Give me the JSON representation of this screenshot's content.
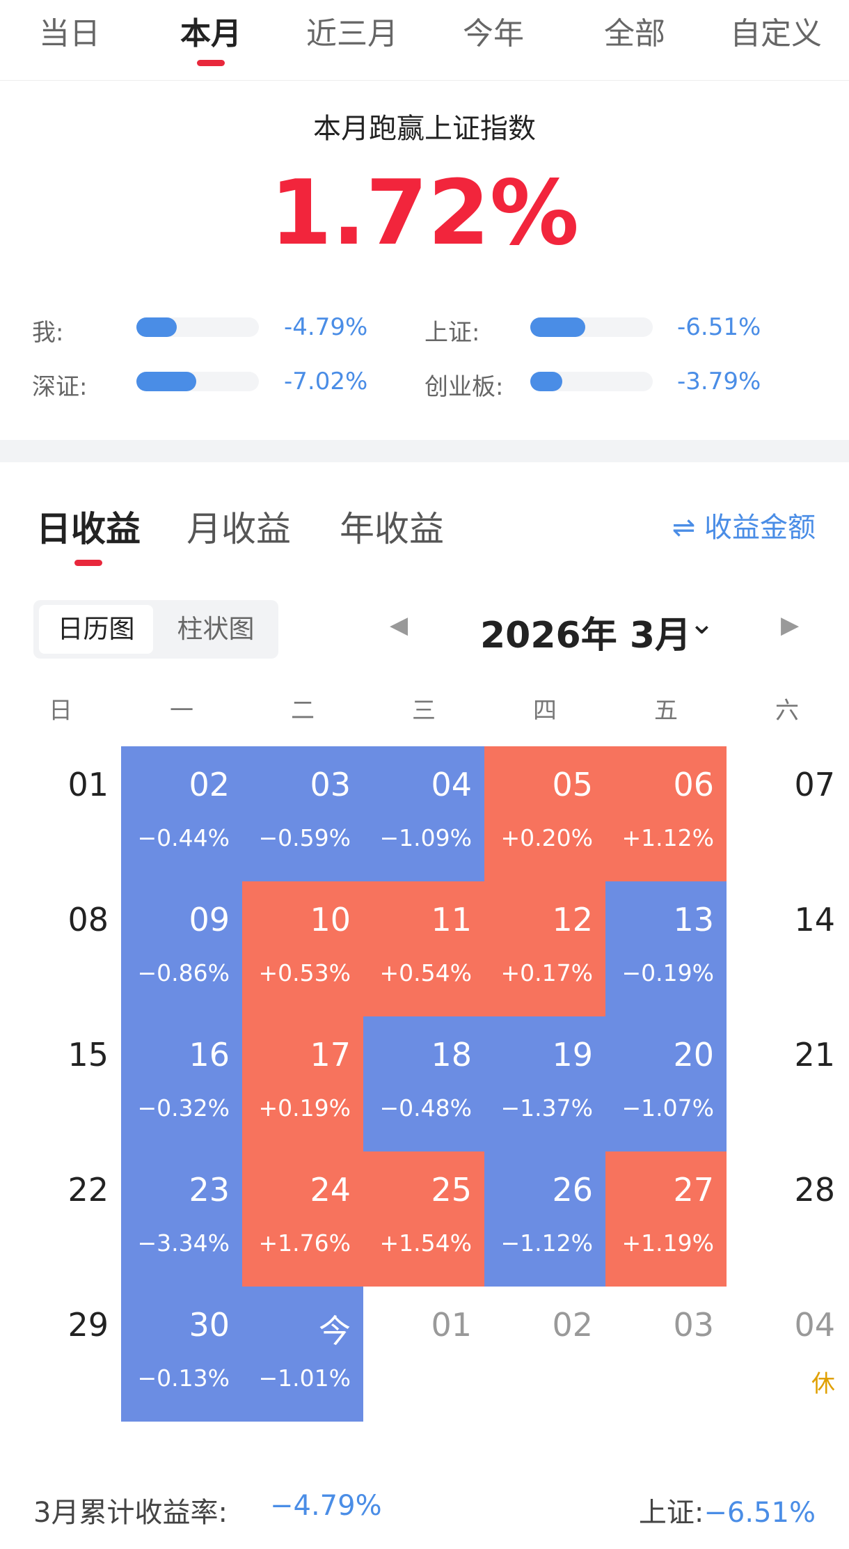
{
  "period_tabs": [
    {
      "label": "当日",
      "active": false
    },
    {
      "label": "本月",
      "active": true
    },
    {
      "label": "近三月",
      "active": false
    },
    {
      "label": "今年",
      "active": false
    },
    {
      "label": "全部",
      "active": false
    },
    {
      "label": "自定义",
      "active": false
    }
  ],
  "beat_index": {
    "title": "本月跑赢上证指数",
    "value": "1.72%"
  },
  "comparison": [
    {
      "label": "我:",
      "value": "-4.79%",
      "fill": 0.33
    },
    {
      "label": "上证:",
      "value": "-6.51%",
      "fill": 0.45
    },
    {
      "label": "深证:",
      "value": "-7.02%",
      "fill": 0.49
    },
    {
      "label": "创业板:",
      "value": "-3.79%",
      "fill": 0.26
    }
  ],
  "section_tabs": [
    {
      "label": "日收益",
      "active": true
    },
    {
      "label": "月收益",
      "active": false
    },
    {
      "label": "年收益",
      "active": false
    }
  ],
  "toggle_amount": {
    "icon": "swap-arrows-icon",
    "label": "收益金额"
  },
  "view_toggle": [
    {
      "label": "日历图",
      "active": true
    },
    {
      "label": "柱状图",
      "active": false
    }
  ],
  "month_selector": {
    "label": "2026年 3月",
    "prev_icon": "triangle-left-icon",
    "next_icon": "triangle-right-icon",
    "dropdown_icon": "chevron-down-icon"
  },
  "weekdays": [
    "日",
    "一",
    "二",
    "三",
    "四",
    "五",
    "六"
  ],
  "colors": {
    "up": "#f7735d",
    "down": "#6b8de3",
    "accent": "#4a8de6",
    "highlight": "#f2253c",
    "rest": "#e0a000"
  },
  "calendar": [
    [
      {
        "day": "01",
        "pct": "",
        "state": "plain"
      },
      {
        "day": "02",
        "pct": "−0.44%",
        "state": "down"
      },
      {
        "day": "03",
        "pct": "−0.59%",
        "state": "down"
      },
      {
        "day": "04",
        "pct": "−1.09%",
        "state": "down"
      },
      {
        "day": "05",
        "pct": "+0.20%",
        "state": "up"
      },
      {
        "day": "06",
        "pct": "+1.12%",
        "state": "up"
      },
      {
        "day": "07",
        "pct": "",
        "state": "plain"
      }
    ],
    [
      {
        "day": "08",
        "pct": "",
        "state": "plain"
      },
      {
        "day": "09",
        "pct": "−0.86%",
        "state": "down"
      },
      {
        "day": "10",
        "pct": "+0.53%",
        "state": "up"
      },
      {
        "day": "11",
        "pct": "+0.54%",
        "state": "up"
      },
      {
        "day": "12",
        "pct": "+0.17%",
        "state": "up"
      },
      {
        "day": "13",
        "pct": "−0.19%",
        "state": "down"
      },
      {
        "day": "14",
        "pct": "",
        "state": "plain"
      }
    ],
    [
      {
        "day": "15",
        "pct": "",
        "state": "plain"
      },
      {
        "day": "16",
        "pct": "−0.32%",
        "state": "down"
      },
      {
        "day": "17",
        "pct": "+0.19%",
        "state": "up"
      },
      {
        "day": "18",
        "pct": "−0.48%",
        "state": "down"
      },
      {
        "day": "19",
        "pct": "−1.37%",
        "state": "down"
      },
      {
        "day": "20",
        "pct": "−1.07%",
        "state": "down"
      },
      {
        "day": "21",
        "pct": "",
        "state": "plain"
      }
    ],
    [
      {
        "day": "22",
        "pct": "",
        "state": "plain"
      },
      {
        "day": "23",
        "pct": "−3.34%",
        "state": "down"
      },
      {
        "day": "24",
        "pct": "+1.76%",
        "state": "up"
      },
      {
        "day": "25",
        "pct": "+1.54%",
        "state": "up"
      },
      {
        "day": "26",
        "pct": "−1.12%",
        "state": "down"
      },
      {
        "day": "27",
        "pct": "+1.19%",
        "state": "up"
      },
      {
        "day": "28",
        "pct": "",
        "state": "plain"
      }
    ],
    [
      {
        "day": "29",
        "pct": "",
        "state": "plain"
      },
      {
        "day": "30",
        "pct": "−0.13%",
        "state": "down"
      },
      {
        "day": "今",
        "pct": "−1.01%",
        "state": "down"
      },
      {
        "day": "01",
        "pct": "",
        "state": "grey"
      },
      {
        "day": "02",
        "pct": "",
        "state": "grey"
      },
      {
        "day": "03",
        "pct": "",
        "state": "grey"
      },
      {
        "day": "04",
        "pct": "",
        "state": "grey",
        "note": "休"
      }
    ]
  ],
  "footer": {
    "cumulative_label": "3月累计收益率:",
    "cumulative_value": "−4.79%",
    "index_label": "上证:",
    "index_value": "−6.51%"
  }
}
